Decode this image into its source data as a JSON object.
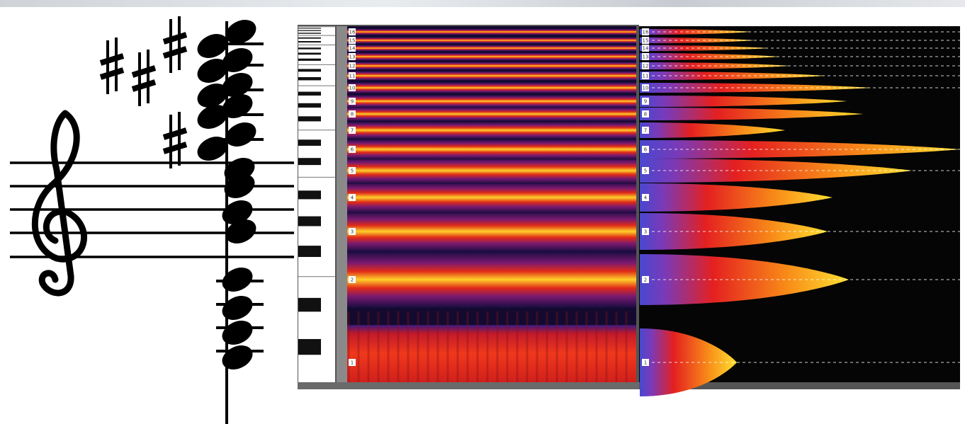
{
  "harmonics": [
    "1",
    "2",
    "3",
    "4",
    "5",
    "6",
    "7",
    "8",
    "9",
    "10",
    "11",
    "12",
    "13",
    "14",
    "15",
    "16"
  ]
}
